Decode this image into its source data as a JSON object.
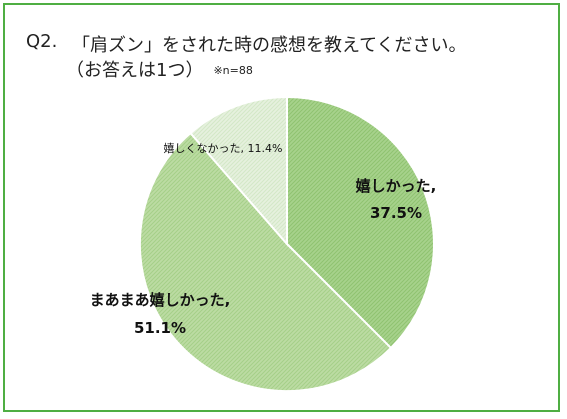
{
  "question": {
    "number": "Q2.",
    "line1": "「肩ズン」をされた時の感想を教えてください。",
    "line2": "（お答えは1つ）",
    "note": "※n=88"
  },
  "colors": {
    "frame": "#4fae43",
    "slice_dark": "#a7d28c",
    "slice_mid": "#b8db9f",
    "slice_light": "#e2efda",
    "slice_edge": "#ffffff"
  },
  "chart_data": {
    "type": "pie",
    "title": "「肩ズン」をされた時の感想を教えてください。",
    "start_angle_deg": 0,
    "direction": "clockwise",
    "slices": [
      {
        "label": "嬉しかった,",
        "value": 37.5,
        "value_label": "37.5%",
        "color": "#a7d28c",
        "label_style": "bold"
      },
      {
        "label": "まあまあ嬉しかった,",
        "value": 51.1,
        "value_label": "51.1%",
        "color": "#b8db9f",
        "label_style": "bold"
      },
      {
        "label": "嬉しくなかった,",
        "value": 11.4,
        "value_label": "11.4%",
        "color": "#e2efda",
        "label_style": "small"
      }
    ]
  }
}
